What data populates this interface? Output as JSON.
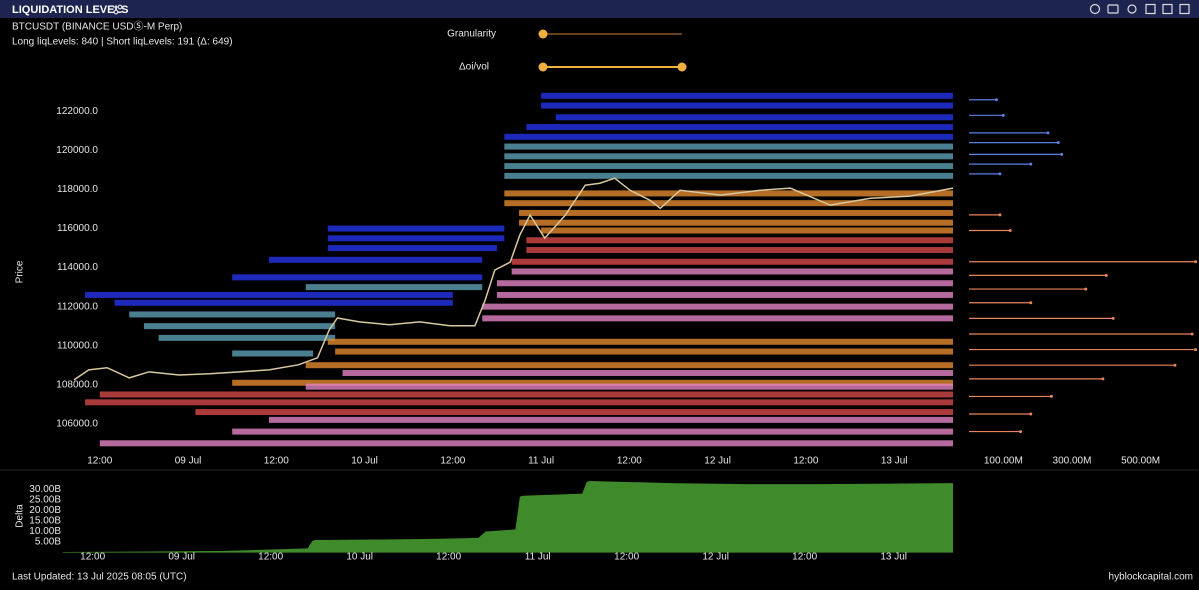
{
  "header": {
    "title": "LIQUIDATION LEVELS",
    "symbol": "BTCUSDT (BINANCE USDⓈ-M Perp)",
    "info": "Long liqLevels: 840 | Short liqLevels: 191 (Δ: 649)"
  },
  "controls": {
    "granularity": "Granularity",
    "oi_vol": "Δoi/vol"
  },
  "footer": {
    "updated": "Last Updated: 13 Jul 2025 08:05 (UTC)",
    "brand": "hyblockcapital.com"
  },
  "chart_data": [
    {
      "type": "liquidation",
      "ylabel": "Price",
      "xlim": [
        7,
        128
      ],
      "xticks": [
        {
          "value": 12,
          "label": "12:00"
        },
        {
          "value": 24,
          "label": "09 Jul"
        },
        {
          "value": 36,
          "label": "12:00"
        },
        {
          "value": 48,
          "label": "10 Jul"
        },
        {
          "value": 60,
          "label": "12:00"
        },
        {
          "value": 72,
          "label": "11 Jul"
        },
        {
          "value": 84,
          "label": "12:00"
        },
        {
          "value": 96,
          "label": "12 Jul"
        },
        {
          "value": 108,
          "label": "12:00"
        },
        {
          "value": 120,
          "label": "13 Jul"
        }
      ],
      "ylim": [
        104400,
        123200
      ],
      "yticks": [
        {
          "value": 106000,
          "label": "106000.0"
        },
        {
          "value": 108000,
          "label": "108000.0"
        },
        {
          "value": 110000,
          "label": "110000.0"
        },
        {
          "value": 112000,
          "label": "112000.0"
        },
        {
          "value": 114000,
          "label": "114000.0"
        },
        {
          "value": 116000,
          "label": "116000.0"
        },
        {
          "value": 118000,
          "label": "118000.0"
        },
        {
          "value": 120000,
          "label": "120000.0"
        },
        {
          "value": 122000,
          "label": "122000.0"
        }
      ],
      "series": [
        {
          "color": "#2433e8",
          "x": [
            72,
            72,
            74,
            70,
            67,
            43,
            43,
            43,
            35,
            30,
            10,
            14
          ],
          "x2": [
            128,
            128,
            128,
            128,
            128,
            67,
            67,
            66,
            64,
            64,
            60,
            60
          ],
          "values": [
            122800,
            122300,
            121700,
            121200,
            120700,
            116000,
            115500,
            115000,
            114400,
            113500,
            112600,
            112200
          ]
        },
        {
          "color": "#5c9fb4",
          "x": [
            67,
            67,
            67,
            67,
            16,
            18,
            20,
            30,
            40
          ],
          "x2": [
            128,
            128,
            128,
            128,
            44,
            44,
            44,
            41,
            64
          ],
          "values": [
            120200,
            119700,
            119200,
            118700,
            111600,
            111000,
            110400,
            109600,
            113000
          ]
        },
        {
          "color": "#e38a30",
          "x": [
            67,
            67,
            69,
            69,
            72,
            43,
            44,
            40,
            30
          ],
          "x2": [
            128,
            128,
            128,
            128,
            128,
            128,
            128,
            128,
            128
          ],
          "values": [
            117800,
            117300,
            116800,
            116300,
            115900,
            110200,
            109700,
            109000,
            108100
          ]
        },
        {
          "color": "#d44a48",
          "x": [
            70,
            70,
            68,
            12,
            10,
            25
          ],
          "x2": [
            128,
            128,
            128,
            128,
            128,
            128
          ],
          "values": [
            115400,
            114900,
            114300,
            107500,
            107100,
            106600
          ]
        },
        {
          "color": "#e483c4",
          "x": [
            68,
            66,
            66,
            64,
            64,
            45,
            40,
            35,
            30,
            12
          ],
          "x2": [
            128,
            128,
            128,
            128,
            128,
            128,
            128,
            128,
            128,
            128
          ],
          "values": [
            113800,
            113200,
            112600,
            112000,
            111400,
            108600,
            107900,
            106200,
            105600,
            105000
          ]
        }
      ],
      "price": {
        "color": "#d8c8a0",
        "x": [
          8.5,
          10.5,
          13,
          16,
          18.7,
          22.8,
          26.9,
          31,
          35,
          39,
          41.6,
          43.2,
          44.3,
          47.3,
          51.4,
          55.5,
          59.6,
          63,
          64.4,
          65.7,
          67.8,
          69.1,
          70.5,
          72.5,
          75.3,
          78,
          80,
          82,
          84.1,
          86.8,
          88.2,
          90.9,
          96.4,
          101.8,
          105.9,
          111.3,
          116.8,
          122.2,
          128
        ],
        "values": [
          108250,
          108760,
          108870,
          108350,
          108660,
          108500,
          108560,
          108660,
          108760,
          109020,
          109380,
          110810,
          111420,
          111220,
          111070,
          111220,
          111020,
          111020,
          112340,
          113870,
          114280,
          115660,
          116690,
          115510,
          116690,
          118220,
          118320,
          118580,
          117960,
          117450,
          117040,
          117960,
          117710,
          117960,
          118070,
          117200,
          117550,
          117660,
          118070
        ]
      }
    },
    {
      "type": "hbar",
      "xlim": [
        0,
        670000000
      ],
      "xticks": [
        {
          "value": 100000000,
          "label": "100.00M"
        },
        {
          "value": 300000000,
          "label": "300.00M"
        },
        {
          "value": 500000000,
          "label": "500.00M"
        }
      ],
      "ylim": [
        104400,
        123200
      ],
      "series": [
        {
          "color": "#5c7fe0",
          "y": [
            122600,
            121800,
            120900,
            120400,
            119800,
            119300,
            118800
          ],
          "values": [
            80000000,
            100000000,
            230000000,
            260000000,
            270000000,
            180000000,
            90000000
          ]
        },
        {
          "color": "#e8845a",
          "y": [
            116700,
            115900,
            114300,
            113600,
            112900,
            112200,
            111400,
            110600,
            109800,
            109000,
            108300,
            107400,
            106500,
            105600
          ],
          "values": [
            90000000,
            120000000,
            660000000,
            400000000,
            340000000,
            180000000,
            420000000,
            650000000,
            660000000,
            600000000,
            390000000,
            240000000,
            180000000,
            150000000
          ]
        }
      ]
    },
    {
      "type": "area",
      "ylabel": "Delta",
      "xlim": [
        8,
        128
      ],
      "xticks": [
        {
          "value": 12,
          "label": "12:00"
        },
        {
          "value": 24,
          "label": "09 Jul"
        },
        {
          "value": 36,
          "label": "12:00"
        },
        {
          "value": 48,
          "label": "10 Jul"
        },
        {
          "value": 60,
          "label": "12:00"
        },
        {
          "value": 72,
          "label": "11 Jul"
        },
        {
          "value": 84,
          "label": "12:00"
        },
        {
          "value": 96,
          "label": "12 Jul"
        },
        {
          "value": 108,
          "label": "12:00"
        },
        {
          "value": 120,
          "label": "13 Jul"
        }
      ],
      "ylim": [
        0,
        34000000000
      ],
      "yticks": [
        {
          "value": 5000000000,
          "label": "5.00B"
        },
        {
          "value": 10000000000,
          "label": "10.00B"
        },
        {
          "value": 15000000000,
          "label": "15.00B"
        },
        {
          "value": 20000000000,
          "label": "20.00B"
        },
        {
          "value": 25000000000,
          "label": "25.00B"
        },
        {
          "value": 30000000000,
          "label": "30.00B"
        }
      ],
      "color": "#3f8a2a",
      "x": [
        8,
        20,
        30,
        36,
        41,
        41.6,
        42,
        50,
        58,
        64,
        65,
        69,
        69.6,
        70,
        78,
        78.6,
        79,
        90,
        100,
        110,
        128
      ],
      "values": [
        300000000,
        500000000,
        800000000,
        1500000000,
        2000000000,
        5500000000,
        6000000000,
        6200000000,
        6500000000,
        7000000000,
        10000000000,
        11000000000,
        26500000000,
        27000000000,
        28000000000,
        33500000000,
        34000000000,
        33000000000,
        32500000000,
        32500000000,
        33000000000
      ]
    }
  ]
}
